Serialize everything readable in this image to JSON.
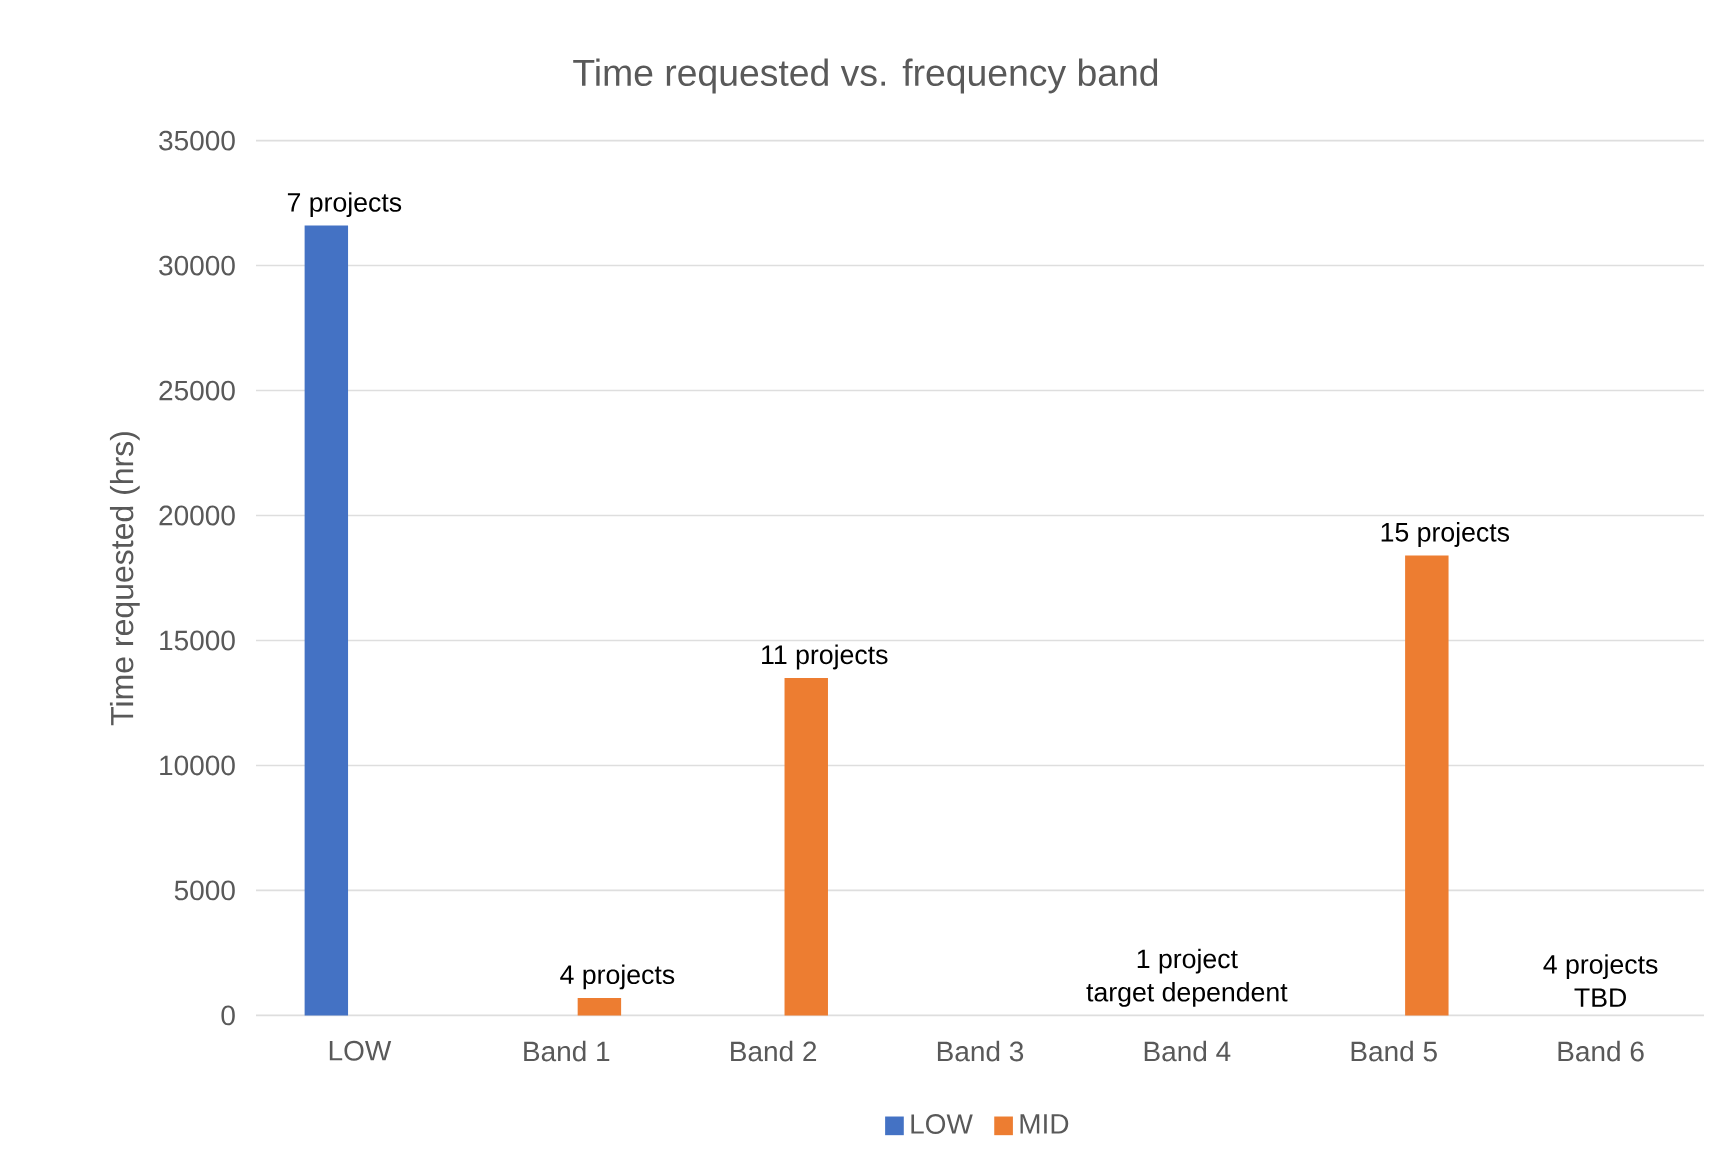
{
  "chart_data": {
    "type": "bar",
    "title": "Time requested vs. frequency band",
    "ylabel": "Time requested (hrs)",
    "categories": [
      "LOW",
      "Band 1",
      "Band 2",
      "Band 3",
      "Band 4",
      "Band 5",
      "Band 6"
    ],
    "series": [
      {
        "name": "LOW",
        "color": "#4472c4",
        "values": [
          31600,
          null,
          null,
          null,
          null,
          null,
          null
        ]
      },
      {
        "name": "MID",
        "color": "#ed7d31",
        "values": [
          null,
          700,
          13500,
          null,
          0,
          18400,
          0
        ]
      }
    ],
    "annotations": [
      "7 projects",
      "4 projects",
      "11 projects",
      "1 project target dependent",
      "15 projects",
      "4 projects TBD"
    ],
    "ylim": [
      0,
      35000
    ],
    "yticks": [
      0,
      5000,
      10000,
      15000,
      20000,
      25000,
      30000,
      35000
    ],
    "grid": "y",
    "legend": "bottom"
  }
}
